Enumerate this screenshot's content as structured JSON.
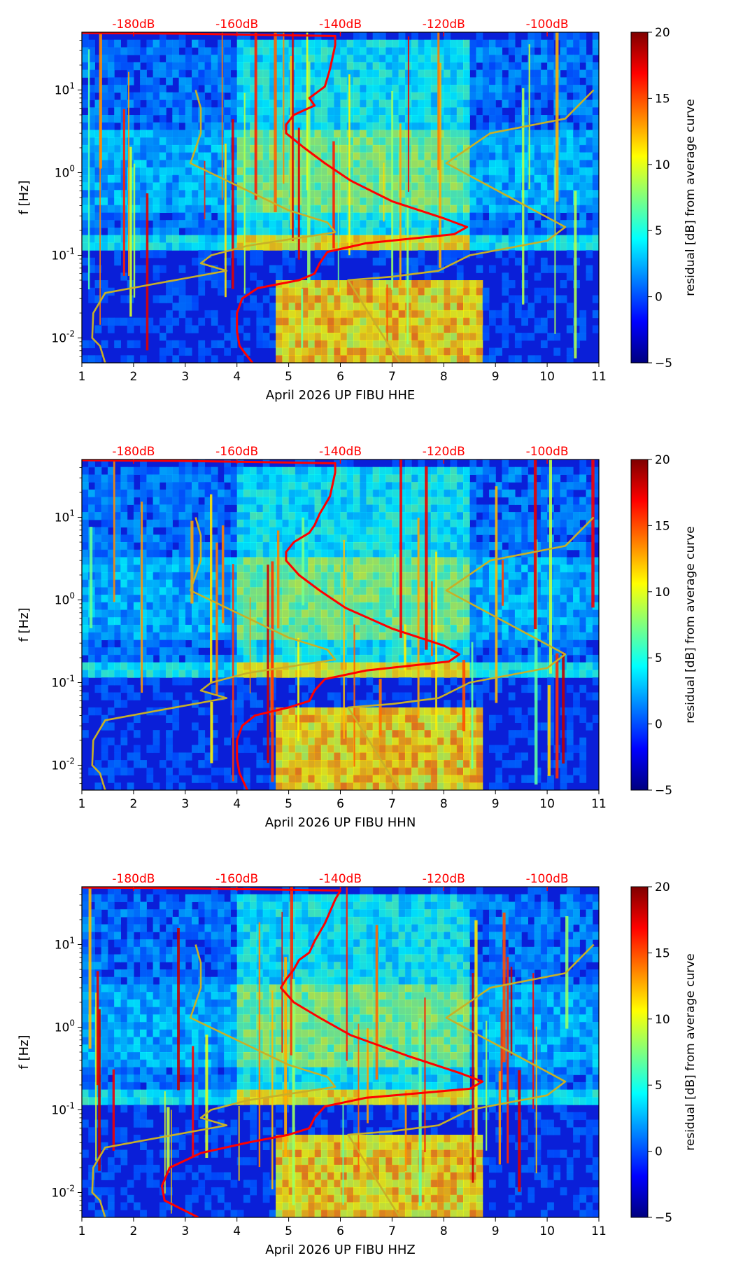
{
  "figure": {
    "colorbar_label": "residual [dB] from average curve",
    "colorbar_ticks": [
      -5,
      0,
      5,
      10,
      15,
      20
    ],
    "colorbar_range": [
      -5,
      20
    ],
    "colormap": [
      "#00007f",
      "#0000ff",
      "#007fff",
      "#00ffff",
      "#7fff7f",
      "#ffff00",
      "#ff7f00",
      "#ff0000",
      "#7f0000"
    ],
    "overlay_colors": {
      "reference": "#ff0000",
      "noise_model": "#c8b027"
    }
  },
  "chart_data": [
    {
      "type": "heatmap",
      "title": "",
      "xlabel": "April 2026 UP FIBU  HHE",
      "ylabel": "f [Hz]",
      "xlim": [
        1,
        11
      ],
      "ylim": [
        0.005,
        50
      ],
      "yscale": "log",
      "x_ticks": [
        1,
        2,
        3,
        4,
        5,
        6,
        7,
        8,
        9,
        10,
        11
      ],
      "y_ticks": [
        {
          "value": 0.01,
          "label": "10^-2"
        },
        {
          "value": 0.1,
          "label": "10^-1"
        },
        {
          "value": 1,
          "label": "10^0"
        },
        {
          "value": 10,
          "label": "10^1"
        }
      ],
      "top_axis_labels": [
        {
          "x": 2,
          "label": "-180dB"
        },
        {
          "x": 4,
          "label": "-160dB"
        },
        {
          "x": 6,
          "label": "-140dB"
        },
        {
          "x": 8,
          "label": "-120dB"
        },
        {
          "x": 10,
          "label": "-100dB"
        }
      ],
      "series": [
        {
          "name": "mean PSD",
          "color": "#ff0000",
          "points": [
            [
              4.3,
              0.005
            ],
            [
              4.05,
              0.008
            ],
            [
              4.0,
              0.012
            ],
            [
              4.0,
              0.02
            ],
            [
              4.1,
              0.03
            ],
            [
              4.4,
              0.04
            ],
            [
              5.2,
              0.05
            ],
            [
              5.5,
              0.06
            ],
            [
              5.6,
              0.08
            ],
            [
              5.75,
              0.11
            ],
            [
              6.5,
              0.14
            ],
            [
              8.2,
              0.18
            ],
            [
              8.45,
              0.22
            ],
            [
              8.0,
              0.28
            ],
            [
              7.0,
              0.45
            ],
            [
              6.2,
              0.8
            ],
            [
              5.7,
              1.3
            ],
            [
              5.3,
              2.0
            ],
            [
              4.95,
              3.0
            ],
            [
              4.95,
              3.8
            ],
            [
              5.1,
              5.0
            ],
            [
              5.5,
              6.5
            ],
            [
              5.4,
              8.0
            ],
            [
              5.7,
              11
            ],
            [
              5.75,
              14
            ],
            [
              5.8,
              18
            ],
            [
              5.85,
              25
            ],
            [
              5.9,
              35
            ],
            [
              5.9,
              45
            ],
            [
              3.0,
              48
            ],
            [
              1.0,
              49
            ]
          ]
        },
        {
          "name": "NLNM / NHNM",
          "color": "#c8b027",
          "points": [
            [
              1.45,
              0.005
            ],
            [
              1.35,
              0.008
            ],
            [
              1.2,
              0.01
            ],
            [
              1.22,
              0.02
            ],
            [
              1.45,
              0.035
            ],
            [
              2.4,
              0.045
            ],
            [
              3.8,
              0.065
            ],
            [
              3.3,
              0.08
            ],
            [
              3.5,
              0.1
            ],
            [
              4.2,
              0.13
            ],
            [
              5.9,
              0.19
            ],
            [
              5.75,
              0.25
            ],
            [
              5.0,
              0.35
            ],
            [
              3.1,
              1.3
            ],
            [
              3.3,
              3.0
            ],
            [
              3.3,
              6.0
            ],
            [
              3.2,
              10.0
            ]
          ]
        },
        {
          "name": "NHNM",
          "color": "#c8b027",
          "points": [
            [
              7.15,
              0.005
            ],
            [
              6.15,
              0.05
            ],
            [
              7.0,
              0.055
            ],
            [
              7.9,
              0.065
            ],
            [
              8.5,
              0.1
            ],
            [
              10.0,
              0.15
            ],
            [
              10.35,
              0.22
            ],
            [
              8.05,
              1.3
            ],
            [
              8.9,
              3.0
            ],
            [
              10.35,
              4.5
            ],
            [
              10.9,
              10.0
            ]
          ]
        }
      ]
    },
    {
      "type": "heatmap",
      "title": "",
      "xlabel": "April 2026 UP FIBU  HHN",
      "ylabel": "f [Hz]",
      "xlim": [
        1,
        11
      ],
      "ylim": [
        0.005,
        50
      ],
      "yscale": "log",
      "x_ticks": [
        1,
        2,
        3,
        4,
        5,
        6,
        7,
        8,
        9,
        10,
        11
      ],
      "y_ticks": [
        {
          "value": 0.01,
          "label": "10^-2"
        },
        {
          "value": 0.1,
          "label": "10^-1"
        },
        {
          "value": 1,
          "label": "10^0"
        },
        {
          "value": 10,
          "label": "10^1"
        }
      ],
      "top_axis_labels": [
        {
          "x": 2,
          "label": "-180dB"
        },
        {
          "x": 4,
          "label": "-160dB"
        },
        {
          "x": 6,
          "label": "-140dB"
        },
        {
          "x": 8,
          "label": "-120dB"
        },
        {
          "x": 10,
          "label": "-100dB"
        }
      ],
      "series": [
        {
          "name": "mean PSD",
          "color": "#ff0000",
          "points": [
            [
              4.2,
              0.005
            ],
            [
              4.05,
              0.008
            ],
            [
              4.0,
              0.012
            ],
            [
              4.0,
              0.02
            ],
            [
              4.1,
              0.03
            ],
            [
              4.35,
              0.04
            ],
            [
              5.0,
              0.05
            ],
            [
              5.4,
              0.06
            ],
            [
              5.5,
              0.08
            ],
            [
              5.7,
              0.11
            ],
            [
              6.5,
              0.14
            ],
            [
              8.1,
              0.18
            ],
            [
              8.3,
              0.22
            ],
            [
              8.0,
              0.28
            ],
            [
              7.0,
              0.45
            ],
            [
              6.1,
              0.8
            ],
            [
              5.6,
              1.3
            ],
            [
              5.2,
              2.0
            ],
            [
              4.95,
              3.0
            ],
            [
              4.95,
              3.8
            ],
            [
              5.1,
              5.0
            ],
            [
              5.4,
              6.5
            ],
            [
              5.5,
              8.0
            ],
            [
              5.6,
              11
            ],
            [
              5.7,
              14
            ],
            [
              5.8,
              18
            ],
            [
              5.85,
              25
            ],
            [
              5.9,
              35
            ],
            [
              5.9,
              45
            ],
            [
              3.0,
              48
            ],
            [
              1.0,
              49
            ]
          ]
        },
        {
          "name": "NLNM / NHNM",
          "color": "#c8b027",
          "points": [
            [
              1.45,
              0.005
            ],
            [
              1.35,
              0.008
            ],
            [
              1.2,
              0.01
            ],
            [
              1.22,
              0.02
            ],
            [
              1.45,
              0.035
            ],
            [
              2.4,
              0.045
            ],
            [
              3.8,
              0.065
            ],
            [
              3.3,
              0.08
            ],
            [
              3.5,
              0.1
            ],
            [
              4.2,
              0.13
            ],
            [
              5.9,
              0.19
            ],
            [
              5.75,
              0.25
            ],
            [
              5.0,
              0.35
            ],
            [
              3.1,
              1.3
            ],
            [
              3.3,
              3.0
            ],
            [
              3.3,
              6.0
            ],
            [
              3.2,
              10.0
            ]
          ]
        },
        {
          "name": "NHNM",
          "color": "#c8b027",
          "points": [
            [
              7.15,
              0.005
            ],
            [
              6.15,
              0.05
            ],
            [
              7.0,
              0.055
            ],
            [
              7.9,
              0.065
            ],
            [
              8.5,
              0.1
            ],
            [
              10.0,
              0.15
            ],
            [
              10.35,
              0.22
            ],
            [
              8.05,
              1.3
            ],
            [
              8.9,
              3.0
            ],
            [
              10.35,
              4.5
            ],
            [
              10.9,
              10.0
            ]
          ]
        }
      ]
    },
    {
      "type": "heatmap",
      "title": "",
      "xlabel": "April 2026 UP FIBU  HHZ",
      "ylabel": "f [Hz]",
      "xlim": [
        1,
        11
      ],
      "ylim": [
        0.005,
        50
      ],
      "yscale": "log",
      "x_ticks": [
        1,
        2,
        3,
        4,
        5,
        6,
        7,
        8,
        9,
        10,
        11
      ],
      "y_ticks": [
        {
          "value": 0.01,
          "label": "10^-2"
        },
        {
          "value": 0.1,
          "label": "10^-1"
        },
        {
          "value": 1,
          "label": "10^0"
        },
        {
          "value": 10,
          "label": "10^1"
        }
      ],
      "top_axis_labels": [
        {
          "x": 2,
          "label": "-180dB"
        },
        {
          "x": 4,
          "label": "-160dB"
        },
        {
          "x": 6,
          "label": "-140dB"
        },
        {
          "x": 8,
          "label": "-120dB"
        },
        {
          "x": 10,
          "label": "-100dB"
        }
      ],
      "series": [
        {
          "name": "mean PSD",
          "color": "#ff0000",
          "points": [
            [
              3.25,
              0.005
            ],
            [
              2.6,
              0.008
            ],
            [
              2.55,
              0.012
            ],
            [
              2.7,
              0.02
            ],
            [
              3.3,
              0.03
            ],
            [
              4.2,
              0.04
            ],
            [
              5.0,
              0.05
            ],
            [
              5.4,
              0.06
            ],
            [
              5.5,
              0.08
            ],
            [
              5.7,
              0.11
            ],
            [
              6.5,
              0.14
            ],
            [
              8.5,
              0.18
            ],
            [
              8.75,
              0.22
            ],
            [
              8.3,
              0.28
            ],
            [
              7.3,
              0.45
            ],
            [
              6.2,
              0.8
            ],
            [
              5.6,
              1.3
            ],
            [
              5.1,
              2.0
            ],
            [
              4.85,
              3.0
            ],
            [
              4.95,
              3.8
            ],
            [
              5.1,
              5.0
            ],
            [
              5.2,
              6.5
            ],
            [
              5.4,
              8.0
            ],
            [
              5.5,
              11
            ],
            [
              5.6,
              14
            ],
            [
              5.7,
              18
            ],
            [
              5.8,
              25
            ],
            [
              5.9,
              35
            ],
            [
              6.0,
              45
            ],
            [
              3.0,
              48
            ],
            [
              1.0,
              49
            ]
          ]
        },
        {
          "name": "NLNM / NHNM",
          "color": "#c8b027",
          "points": [
            [
              1.45,
              0.005
            ],
            [
              1.35,
              0.008
            ],
            [
              1.2,
              0.01
            ],
            [
              1.22,
              0.02
            ],
            [
              1.45,
              0.035
            ],
            [
              2.4,
              0.045
            ],
            [
              3.8,
              0.065
            ],
            [
              3.3,
              0.08
            ],
            [
              3.5,
              0.1
            ],
            [
              4.2,
              0.13
            ],
            [
              5.9,
              0.19
            ],
            [
              5.75,
              0.25
            ],
            [
              5.0,
              0.35
            ],
            [
              3.1,
              1.3
            ],
            [
              3.3,
              3.0
            ],
            [
              3.3,
              6.0
            ],
            [
              3.2,
              10.0
            ]
          ]
        },
        {
          "name": "NHNM",
          "color": "#c8b027",
          "points": [
            [
              7.15,
              0.005
            ],
            [
              6.15,
              0.05
            ],
            [
              7.0,
              0.055
            ],
            [
              7.9,
              0.065
            ],
            [
              8.5,
              0.1
            ],
            [
              10.0,
              0.15
            ],
            [
              10.35,
              0.22
            ],
            [
              8.05,
              1.3
            ],
            [
              8.9,
              3.0
            ],
            [
              10.35,
              4.5
            ],
            [
              10.9,
              10.0
            ]
          ]
        }
      ]
    }
  ]
}
